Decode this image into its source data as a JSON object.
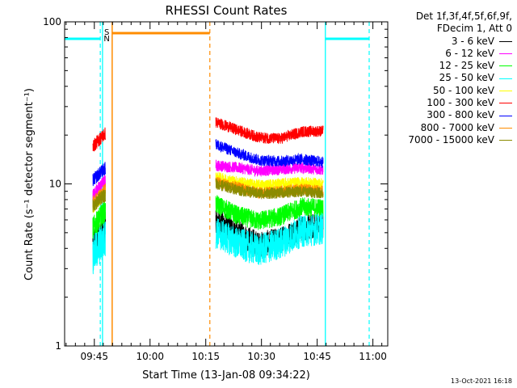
{
  "chart_data": {
    "type": "line",
    "title": "RHESSI Count Rates",
    "xlabel": "Start Time (13-Jan-08 09:34:22)",
    "ylabel": "Count Rate (s⁻¹ detector segment⁻¹)",
    "y_scale": "log",
    "ylim": [
      1,
      100
    ],
    "xlim_minutes_after_0934": [
      3.6,
      90.6
    ],
    "y_ticks": [
      "1",
      "10",
      "100"
    ],
    "x_ticks": [
      {
        "label": "09:45",
        "t": 11.6
      },
      {
        "label": "10:00",
        "t": 26.6
      },
      {
        "label": "10:15",
        "t": 41.6
      },
      {
        "label": "10:30",
        "t": 56.6
      },
      {
        "label": "10:45",
        "t": 71.6
      },
      {
        "label": "11:00",
        "t": 86.6
      }
    ],
    "legend_header": [
      "Det 1f,3f,4f,5f,6f,9f,",
      "FDecim 1, Att 0"
    ],
    "series": [
      {
        "name": "3 - 6 keV",
        "color": "#000000",
        "seg1": [
          4.3,
          5.4
        ],
        "seg2": [
          6.0,
          5.0,
          4.2,
          4.5,
          5.3,
          5.6
        ]
      },
      {
        "name": "6 - 12 keV",
        "color": "#ff00ff",
        "seg1": [
          8.5,
          10.5
        ],
        "seg2": [
          13.0,
          12.6,
          12.0,
          12.3,
          12.6,
          12.2
        ]
      },
      {
        "name": "12 - 25 keV",
        "color": "#00ff00",
        "seg1": [
          5.3,
          6.8
        ],
        "seg2": [
          7.5,
          6.4,
          5.9,
          6.3,
          7.2,
          7.1
        ]
      },
      {
        "name": "25 - 50 keV",
        "color": "#00ffff",
        "seg1": [
          3.6,
          4.6
        ],
        "seg2": [
          5.0,
          4.3,
          3.9,
          4.3,
          5.1,
          5.3
        ]
      },
      {
        "name": "50 - 100 keV",
        "color": "#ffff00",
        "seg1": [
          7.2,
          8.8
        ],
        "seg2": [
          11.0,
          10.3,
          9.8,
          10.0,
          10.2,
          10.0
        ]
      },
      {
        "name": "100 - 300 keV",
        "color": "#ff0000",
        "seg1": [
          17.0,
          20.5
        ],
        "seg2": [
          24.0,
          21.5,
          19.3,
          19.0,
          21.0,
          21.2
        ]
      },
      {
        "name": "300 - 800 keV",
        "color": "#0000ff",
        "seg1": [
          10.5,
          12.5
        ],
        "seg2": [
          17.5,
          15.5,
          14.0,
          13.8,
          14.2,
          13.6
        ]
      },
      {
        "name": "800 - 7000 keV",
        "color": "#ff8c00",
        "seg1": [
          7.6,
          9.2
        ],
        "seg2": [
          10.3,
          9.5,
          8.8,
          9.0,
          9.3,
          9.0
        ]
      },
      {
        "name": "7000 - 15000 keV",
        "color": "#8b8b00",
        "seg1": [
          7.3,
          8.6
        ],
        "seg2": [
          10.0,
          9.2,
          8.7,
          8.8,
          9.0,
          8.8
        ]
      }
    ],
    "segments": {
      "seg1_t": [
        11.2,
        14.6
      ],
      "seg2_t": [
        44.3,
        73.2
      ]
    },
    "annotations": {
      "cyan_bar_color": "#00ffff",
      "orange_bar_color": "#ff8c00",
      "s_label": "S",
      "n_label": "N",
      "cyan_bars_t": [
        [
          3.6,
          13.2
        ],
        [
          73.8,
          85.6
        ]
      ],
      "orange_bar_t": [
        16.4,
        42.7
      ],
      "cyan_solid_t": [
        13.8,
        73.8
      ],
      "cyan_dashed_t": [
        13.2,
        85.6
      ],
      "orange_solid_t": [
        16.4
      ],
      "orange_dashed_t": [
        42.7
      ]
    },
    "grid": false
  },
  "footer": {
    "timestamp": "13-Oct-2021 16:18"
  }
}
